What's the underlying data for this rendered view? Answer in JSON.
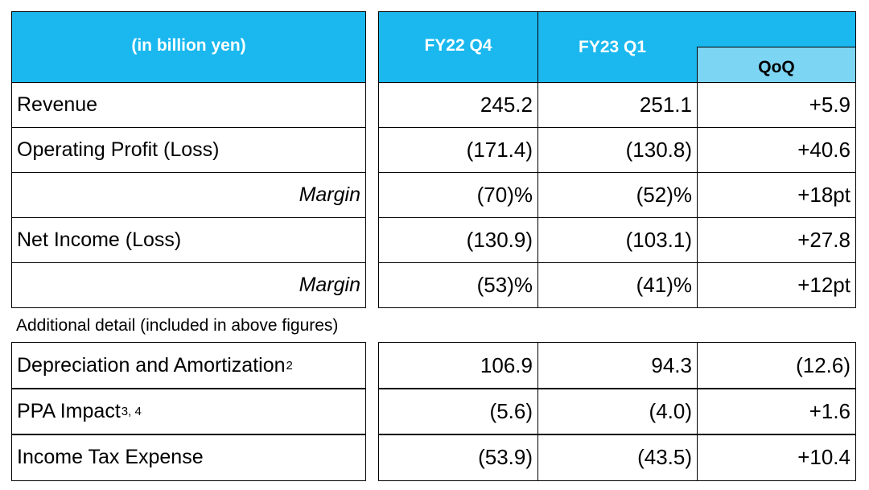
{
  "header": {
    "label": "(in billion yen)",
    "columns": [
      "FY22 Q4",
      "FY23 Q1"
    ],
    "sub_column": "QoQ"
  },
  "main_rows": [
    {
      "label": "Revenue",
      "values": [
        "245.2",
        "251.1",
        "+5.9"
      ]
    },
    {
      "label": "Operating Profit (Loss)",
      "values": [
        "(171.4)",
        "(130.8)",
        "+40.6"
      ]
    },
    {
      "label": "Margin",
      "italic": true,
      "values": [
        "(70)%",
        "(52)%",
        "+18pt"
      ]
    },
    {
      "label": "Net Income (Loss)",
      "values": [
        "(130.9)",
        "(103.1)",
        "+27.8"
      ]
    },
    {
      "label": "Margin",
      "italic": true,
      "values": [
        "(53)%",
        "(41)%",
        "+12pt"
      ]
    }
  ],
  "note": "Additional detail (included in above figures)",
  "detail_rows": [
    {
      "label": "Depreciation and Amortization",
      "sup": "2",
      "values": [
        "106.9",
        "94.3",
        "(12.6)"
      ]
    },
    {
      "label": "PPA Impact",
      "sup": "3, 4",
      "values": [
        "(5.6)",
        "(4.0)",
        "+1.6"
      ]
    },
    {
      "label": "Income Tax Expense",
      "values": [
        "(53.9)",
        "(43.5)",
        "+10.4"
      ]
    }
  ]
}
